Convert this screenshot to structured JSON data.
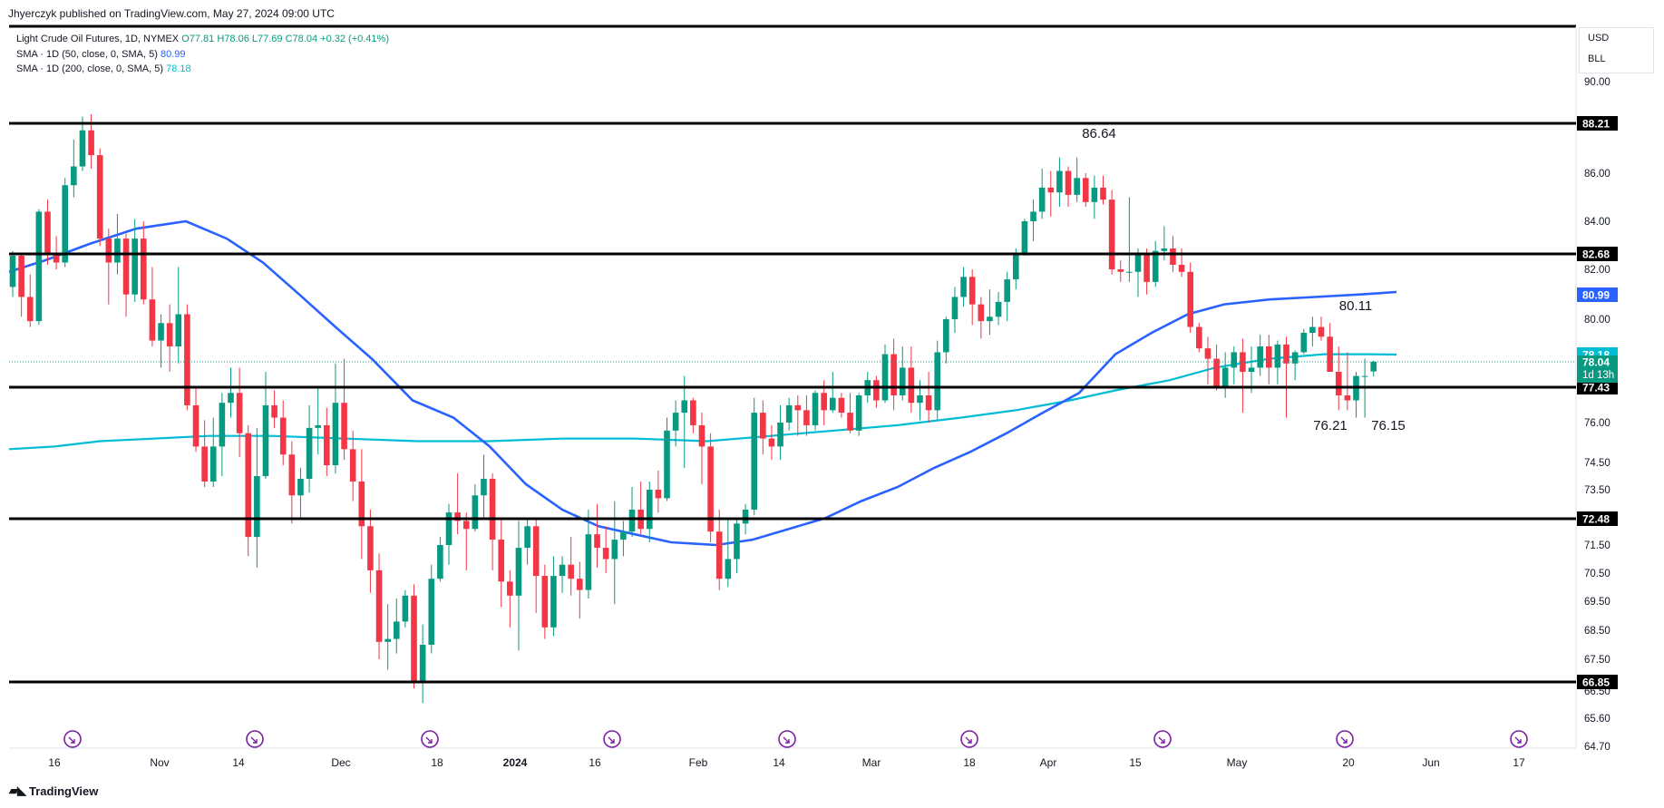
{
  "publisher": "Jhyerczyk published on TradingView.com, May 27, 2024 09:00 UTC",
  "legend": {
    "symbol": "Light Crude Oil Futures, 1D, NYMEX",
    "open": "O77.81",
    "high": "H78.06",
    "low": "L77.69",
    "close": "C78.04",
    "change": "+0.32 (+0.41%)",
    "sma50_label": "SMA · 1D (50, close, 0, SMA, 5)",
    "sma50_value": "80.99",
    "sma200_label": "SMA · 1D (200, close, 0, SMA, 5)",
    "sma200_value": "78.18"
  },
  "currency": [
    "USD",
    "BLL"
  ],
  "footer": "TradingView",
  "colors": {
    "up": "#089981",
    "down": "#f23645",
    "sma50": "#2962ff",
    "sma200": "#00bcd4",
    "level": "#000000",
    "last_price": "#089981"
  },
  "chart_data": {
    "type": "candlestick",
    "instrument": "Light Crude Oil Futures (CL1!), 1D, NYMEX",
    "y_ticks": [
      "90.00",
      "86.00",
      "84.00",
      "82.00",
      "80.00",
      "76.00",
      "74.50",
      "73.50",
      "71.50",
      "70.50",
      "69.50",
      "68.50",
      "67.50",
      "66.50",
      "65.60",
      "64.70"
    ],
    "x_ticks": [
      "16",
      "Nov",
      "14",
      "Dec",
      "18",
      "2024",
      "16",
      "Feb",
      "14",
      "Mar",
      "18",
      "Apr",
      "15",
      "May",
      "20",
      "Jun",
      "17"
    ],
    "horizontal_levels": [
      88.21,
      82.68,
      77.43,
      72.48,
      66.85
    ],
    "level_labels": [
      "88.21",
      "82.68",
      "77.43",
      "72.48",
      "66.85"
    ],
    "price_labels": [
      {
        "text": "80.99",
        "kind": "sma50"
      },
      {
        "text": "78.18",
        "kind": "sma200"
      },
      {
        "text": "78.04",
        "kind": "last"
      },
      {
        "text": "1d 13h",
        "kind": "countdown"
      }
    ],
    "annotations": [
      {
        "text": "86.64",
        "price": 86.64,
        "date": "2024-04-12"
      },
      {
        "text": "80.11",
        "price": 80.11,
        "date": "2024-05-20"
      },
      {
        "text": "76.21",
        "price": 76.21,
        "date": "2024-05-15"
      },
      {
        "text": "76.15",
        "price": 76.15,
        "date": "2024-05-23"
      }
    ],
    "last_price": 78.04,
    "candles": [
      [
        81.3,
        82.8,
        80.9,
        82.6
      ],
      [
        82.6,
        82.7,
        80.1,
        80.9
      ],
      [
        80.9,
        81.8,
        79.6,
        79.9
      ],
      [
        79.9,
        84.5,
        79.7,
        84.4
      ],
      [
        84.4,
        84.9,
        82.2,
        82.7
      ],
      [
        82.7,
        83.4,
        82.0,
        82.3
      ],
      [
        82.3,
        85.8,
        82.1,
        85.5
      ],
      [
        85.5,
        87.5,
        85.0,
        86.3
      ],
      [
        86.3,
        88.5,
        86.1,
        87.9
      ],
      [
        87.9,
        88.6,
        86.2,
        86.8
      ],
      [
        86.8,
        87.1,
        83.0,
        83.3
      ],
      [
        83.3,
        83.7,
        80.6,
        82.3
      ],
      [
        82.3,
        84.3,
        81.8,
        83.3
      ],
      [
        83.3,
        83.5,
        80.1,
        81.0
      ],
      [
        81.0,
        84.1,
        80.7,
        83.3
      ],
      [
        83.3,
        84.0,
        80.6,
        80.8
      ],
      [
        80.8,
        82.1,
        78.6,
        78.9
      ],
      [
        78.9,
        80.2,
        77.9,
        79.8
      ],
      [
        79.8,
        80.6,
        77.8,
        78.6
      ],
      [
        78.6,
        82.1,
        78.0,
        80.2
      ],
      [
        80.2,
        80.6,
        76.5,
        76.7
      ],
      [
        76.7,
        77.4,
        74.9,
        75.1
      ],
      [
        75.1,
        76.1,
        73.6,
        73.8
      ],
      [
        73.8,
        76.2,
        73.6,
        75.1
      ],
      [
        75.1,
        77.2,
        74.0,
        76.8
      ],
      [
        76.8,
        77.9,
        76.2,
        77.2
      ],
      [
        77.2,
        77.9,
        74.7,
        75.6
      ],
      [
        75.6,
        75.9,
        71.1,
        71.8
      ],
      [
        71.8,
        75.8,
        70.7,
        74.0
      ],
      [
        74.0,
        77.8,
        73.9,
        76.7
      ],
      [
        76.7,
        77.3,
        75.8,
        76.2
      ],
      [
        76.2,
        76.9,
        74.4,
        74.8
      ],
      [
        74.8,
        75.3,
        72.3,
        73.3
      ],
      [
        73.3,
        74.3,
        72.5,
        73.9
      ],
      [
        73.9,
        76.7,
        73.4,
        75.8
      ],
      [
        75.8,
        77.4,
        74.8,
        75.9
      ],
      [
        75.9,
        76.6,
        74.0,
        74.4
      ],
      [
        74.4,
        78.0,
        74.1,
        76.8
      ],
      [
        76.8,
        78.1,
        74.6,
        75.0
      ],
      [
        75.0,
        75.7,
        73.1,
        73.8
      ],
      [
        73.8,
        75.0,
        71.0,
        72.2
      ],
      [
        72.2,
        72.8,
        69.8,
        70.6
      ],
      [
        70.6,
        71.2,
        67.5,
        68.1
      ],
      [
        68.1,
        69.4,
        67.2,
        68.2
      ],
      [
        68.2,
        69.6,
        67.7,
        68.8
      ],
      [
        68.8,
        69.9,
        68.6,
        69.7
      ],
      [
        69.7,
        70.1,
        66.6,
        66.8
      ],
      [
        66.8,
        68.7,
        66.1,
        68.0
      ],
      [
        68.0,
        70.8,
        67.7,
        70.3
      ],
      [
        70.3,
        71.8,
        70.2,
        71.5
      ],
      [
        71.5,
        73.0,
        70.8,
        72.7
      ],
      [
        72.7,
        74.1,
        71.9,
        72.4
      ],
      [
        72.4,
        72.7,
        70.6,
        72.1
      ],
      [
        72.1,
        73.7,
        72.0,
        73.3
      ],
      [
        73.3,
        74.8,
        72.5,
        73.9
      ],
      [
        73.9,
        74.1,
        70.6,
        71.7
      ],
      [
        71.7,
        72.5,
        69.3,
        70.2
      ],
      [
        70.2,
        70.6,
        68.6,
        69.7
      ],
      [
        69.7,
        72.4,
        67.8,
        71.4
      ],
      [
        71.4,
        72.5,
        70.8,
        72.2
      ],
      [
        72.2,
        72.5,
        69.1,
        70.4
      ],
      [
        70.4,
        70.8,
        68.2,
        68.6
      ],
      [
        68.6,
        71.1,
        68.3,
        70.4
      ],
      [
        70.4,
        71.1,
        69.8,
        70.8
      ],
      [
        70.8,
        71.8,
        69.7,
        70.3
      ],
      [
        70.3,
        70.9,
        68.9,
        69.9
      ],
      [
        69.9,
        72.8,
        69.6,
        71.9
      ],
      [
        71.9,
        73.0,
        70.7,
        71.4
      ],
      [
        71.4,
        72.2,
        70.5,
        71.0
      ],
      [
        71.0,
        73.1,
        69.4,
        71.7
      ],
      [
        71.7,
        72.4,
        71.1,
        72.0
      ],
      [
        72.0,
        73.6,
        71.8,
        72.8
      ],
      [
        72.8,
        73.8,
        71.9,
        72.1
      ],
      [
        72.1,
        73.8,
        71.6,
        73.5
      ],
      [
        73.5,
        74.2,
        72.7,
        73.2
      ],
      [
        73.2,
        76.2,
        73.1,
        75.7
      ],
      [
        75.7,
        76.9,
        75.1,
        76.4
      ],
      [
        76.4,
        77.7,
        74.3,
        76.9
      ],
      [
        76.9,
        77.0,
        75.6,
        75.9
      ],
      [
        75.9,
        76.4,
        73.7,
        75.1
      ],
      [
        75.1,
        75.6,
        71.6,
        72.0
      ],
      [
        72.0,
        72.8,
        69.9,
        70.3
      ],
      [
        70.3,
        72.5,
        70.0,
        71.0
      ],
      [
        71.0,
        72.5,
        70.5,
        72.3
      ],
      [
        72.3,
        73.0,
        71.9,
        72.8
      ],
      [
        72.8,
        77.0,
        72.6,
        76.4
      ],
      [
        76.4,
        76.9,
        74.8,
        75.4
      ],
      [
        75.4,
        75.9,
        74.6,
        75.1
      ],
      [
        75.1,
        76.7,
        74.6,
        76.0
      ],
      [
        76.0,
        77.0,
        75.7,
        76.7
      ],
      [
        76.7,
        77.1,
        75.5,
        76.5
      ],
      [
        76.5,
        77.1,
        75.5,
        75.9
      ],
      [
        75.9,
        77.3,
        75.7,
        77.2
      ],
      [
        77.2,
        77.6,
        75.9,
        76.5
      ],
      [
        76.5,
        77.8,
        76.4,
        77.0
      ],
      [
        77.0,
        77.2,
        76.2,
        76.4
      ],
      [
        76.4,
        77.2,
        75.6,
        75.7
      ],
      [
        75.7,
        77.2,
        75.5,
        77.1
      ],
      [
        77.1,
        77.8,
        76.8,
        77.6
      ],
      [
        77.6,
        77.7,
        76.6,
        76.9
      ],
      [
        76.9,
        78.7,
        76.8,
        78.2
      ],
      [
        78.2,
        79.0,
        76.5,
        77.1
      ],
      [
        77.1,
        78.6,
        76.9,
        77.9
      ],
      [
        77.9,
        78.6,
        76.4,
        76.8
      ],
      [
        76.8,
        77.6,
        76.1,
        77.1
      ],
      [
        77.1,
        77.8,
        76.0,
        76.5
      ],
      [
        76.5,
        78.9,
        76.1,
        78.3
      ],
      [
        78.3,
        80.1,
        78.0,
        80.0
      ],
      [
        80.0,
        81.3,
        79.3,
        80.9
      ],
      [
        80.9,
        82.1,
        80.5,
        81.7
      ],
      [
        81.7,
        82.0,
        79.7,
        80.6
      ],
      [
        80.6,
        80.9,
        79.0,
        79.9
      ],
      [
        79.9,
        81.2,
        79.2,
        80.1
      ],
      [
        80.1,
        81.1,
        79.7,
        80.7
      ],
      [
        80.7,
        81.9,
        79.9,
        81.6
      ],
      [
        81.6,
        82.9,
        81.2,
        82.7
      ],
      [
        82.7,
        84.1,
        82.6,
        84.0
      ],
      [
        84.0,
        84.9,
        83.2,
        84.4
      ],
      [
        84.4,
        86.2,
        84.1,
        85.4
      ],
      [
        85.4,
        86.1,
        84.2,
        85.2
      ],
      [
        85.2,
        86.7,
        84.6,
        86.1
      ],
      [
        86.1,
        86.3,
        84.6,
        85.1
      ],
      [
        85.1,
        86.7,
        84.8,
        85.8
      ],
      [
        85.8,
        86.0,
        84.6,
        84.8
      ],
      [
        84.8,
        85.9,
        84.1,
        85.4
      ],
      [
        85.4,
        85.9,
        84.7,
        84.9
      ],
      [
        84.9,
        85.3,
        81.8,
        82.0
      ],
      [
        82.0,
        82.4,
        81.5,
        81.9
      ],
      [
        81.9,
        85.0,
        81.5,
        81.9
      ],
      [
        81.9,
        82.9,
        80.9,
        82.7
      ],
      [
        82.7,
        82.9,
        81.0,
        81.5
      ],
      [
        81.5,
        83.2,
        81.3,
        82.8
      ],
      [
        82.8,
        83.8,
        82.4,
        82.9
      ],
      [
        82.9,
        83.4,
        81.9,
        82.2
      ],
      [
        82.2,
        82.9,
        81.7,
        81.9
      ],
      [
        81.9,
        82.3,
        79.3,
        79.6
      ],
      [
        79.6,
        79.8,
        78.3,
        78.5
      ],
      [
        78.5,
        79.1,
        77.5,
        78.1
      ],
      [
        78.1,
        78.7,
        77.3,
        77.4
      ],
      [
        77.4,
        78.3,
        77.0,
        77.9
      ],
      [
        77.9,
        78.6,
        77.5,
        78.3
      ],
      [
        78.3,
        79.0,
        76.4,
        77.8
      ],
      [
        77.8,
        78.6,
        77.2,
        77.9
      ],
      [
        77.9,
        79.2,
        77.7,
        78.6
      ],
      [
        78.6,
        79.2,
        77.5,
        77.9
      ],
      [
        77.9,
        78.9,
        77.5,
        78.7
      ],
      [
        78.7,
        79.1,
        76.2,
        78.0
      ],
      [
        78.0,
        78.4,
        77.6,
        78.3
      ],
      [
        78.3,
        79.5,
        78.2,
        79.3
      ],
      [
        79.3,
        80.1,
        78.6,
        79.6
      ],
      [
        79.6,
        80.1,
        78.9,
        79.1
      ],
      [
        79.1,
        79.8,
        77.8,
        77.8
      ],
      [
        77.8,
        78.6,
        76.5,
        77.1
      ],
      [
        77.1,
        78.3,
        76.5,
        76.9
      ],
      [
        76.9,
        77.8,
        76.2,
        77.7
      ],
      [
        77.7,
        78.1,
        76.2,
        77.7
      ],
      [
        77.81,
        78.06,
        77.69,
        78.04
      ]
    ]
  }
}
